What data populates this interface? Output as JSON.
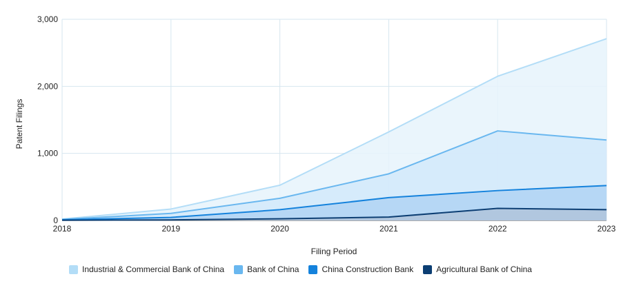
{
  "chart_data": {
    "type": "area",
    "stacked": false,
    "x": [
      "2018",
      "2019",
      "2020",
      "2021",
      "2022",
      "2023"
    ],
    "xlabel": "Filing Period",
    "ylabel": "Patent Filings",
    "ylim": [
      0,
      3000
    ],
    "yticks": [
      0,
      1000,
      2000,
      3000
    ],
    "ytick_labels": [
      "0",
      "1,000",
      "2,000",
      "3,000"
    ],
    "grid": true,
    "legend_position": "bottom",
    "series": [
      {
        "name": "Industrial & Commercial Bank of China",
        "values": [
          20,
          170,
          525,
          1320,
          2150,
          2710
        ],
        "color": "#b3ddf7",
        "fill": "#e6f3fc"
      },
      {
        "name": "Bank of China",
        "values": [
          15,
          105,
          330,
          695,
          1335,
          1200
        ],
        "color": "#69b7ef",
        "fill": "#d2e9fa"
      },
      {
        "name": "China Construction Bank",
        "values": [
          10,
          45,
          160,
          340,
          445,
          520
        ],
        "color": "#1482dc",
        "fill": "#b0d4f3"
      },
      {
        "name": "Agricultural Bank of China",
        "values": [
          3,
          8,
          25,
          50,
          180,
          160
        ],
        "color": "#0c3e73",
        "fill": "#b0c4da"
      }
    ]
  }
}
